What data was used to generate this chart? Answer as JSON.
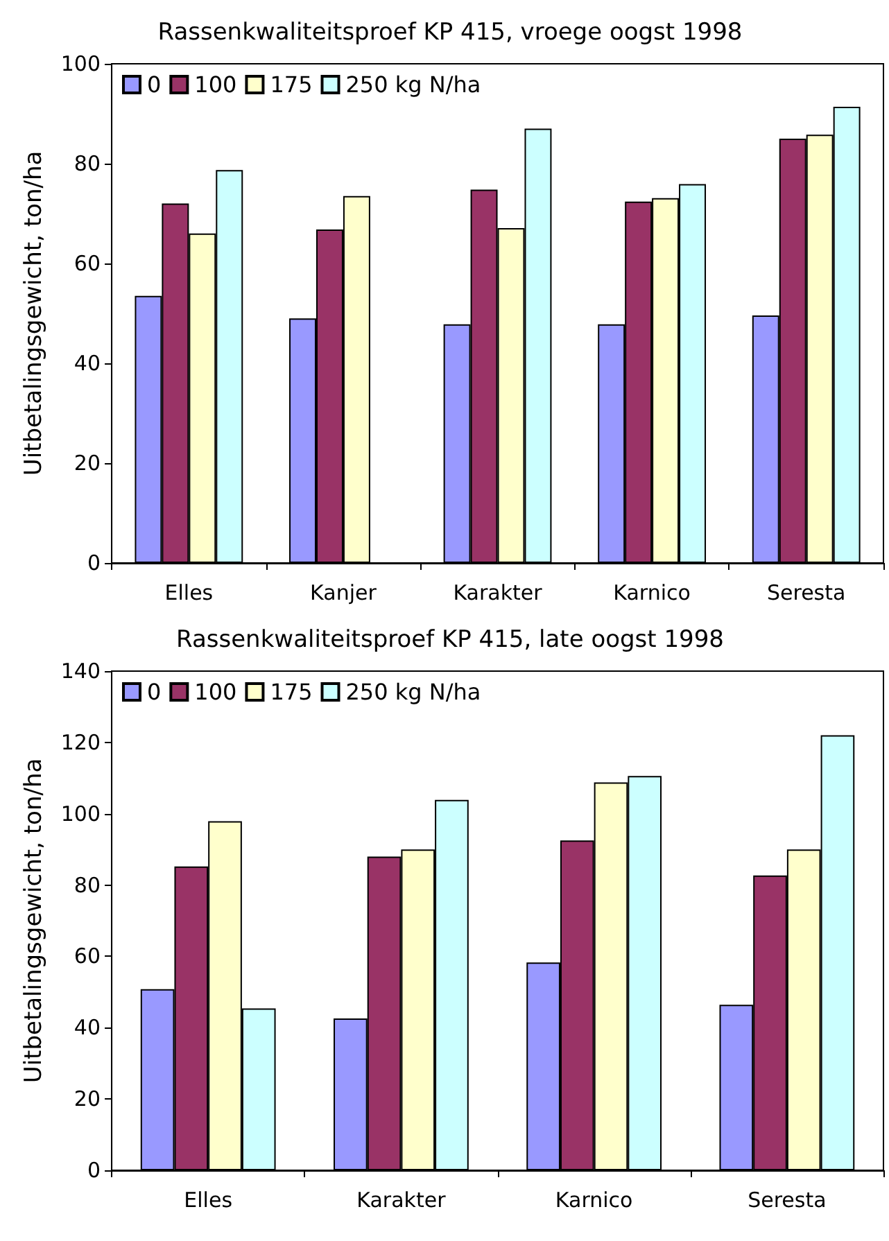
{
  "chart_data": [
    {
      "type": "bar",
      "title": "Rassenkwaliteitsproef KP 415, vroege oogst 1998",
      "ylabel": "Uitbetalingsgewicht, ton/ha",
      "categories": [
        "Elles",
        "Kanjer",
        "Karakter",
        "Karnico",
        "Seresta"
      ],
      "ylim": [
        0,
        100
      ],
      "yticks": [
        0,
        20,
        40,
        60,
        80,
        100
      ],
      "grid": false,
      "legend": "top left",
      "series": [
        {
          "name": "0",
          "color": "#9999ff",
          "values": [
            53.5,
            49,
            47.8,
            47.8,
            49.6
          ]
        },
        {
          "name": "100",
          "color": "#993366",
          "values": [
            72,
            66.8,
            74.8,
            72.4,
            85
          ]
        },
        {
          "name": "175",
          "color": "#ffffcc",
          "values": [
            66,
            73.5,
            67.1,
            73.1,
            85.8
          ]
        },
        {
          "name": "250 kg N/ha",
          "color": "#ccffff",
          "values": [
            78.7,
            null,
            87,
            75.9,
            91.4
          ]
        }
      ]
    },
    {
      "type": "bar",
      "title": "Rassenkwaliteitsproef KP 415, late oogst 1998",
      "ylabel": "Uitbetalingsgewicht, ton/ha",
      "categories": [
        "Elles",
        "Karakter",
        "Karnico",
        "Seresta"
      ],
      "ylim": [
        0,
        140
      ],
      "yticks": [
        0,
        20,
        40,
        60,
        80,
        100,
        120,
        140
      ],
      "grid": false,
      "legend": "top left",
      "series": [
        {
          "name": "0",
          "color": "#9999ff",
          "values": [
            50.8,
            42.6,
            58.3,
            46.4
          ]
        },
        {
          "name": "100",
          "color": "#993366",
          "values": [
            85.2,
            88,
            92.5,
            82.7
          ]
        },
        {
          "name": "175",
          "color": "#ffffcc",
          "values": [
            97.9,
            90,
            108.8,
            90
          ]
        },
        {
          "name": "250 kg N/ha",
          "color": "#ccffff",
          "values": [
            45.4,
            103.9,
            110.6,
            122
          ]
        }
      ]
    }
  ]
}
